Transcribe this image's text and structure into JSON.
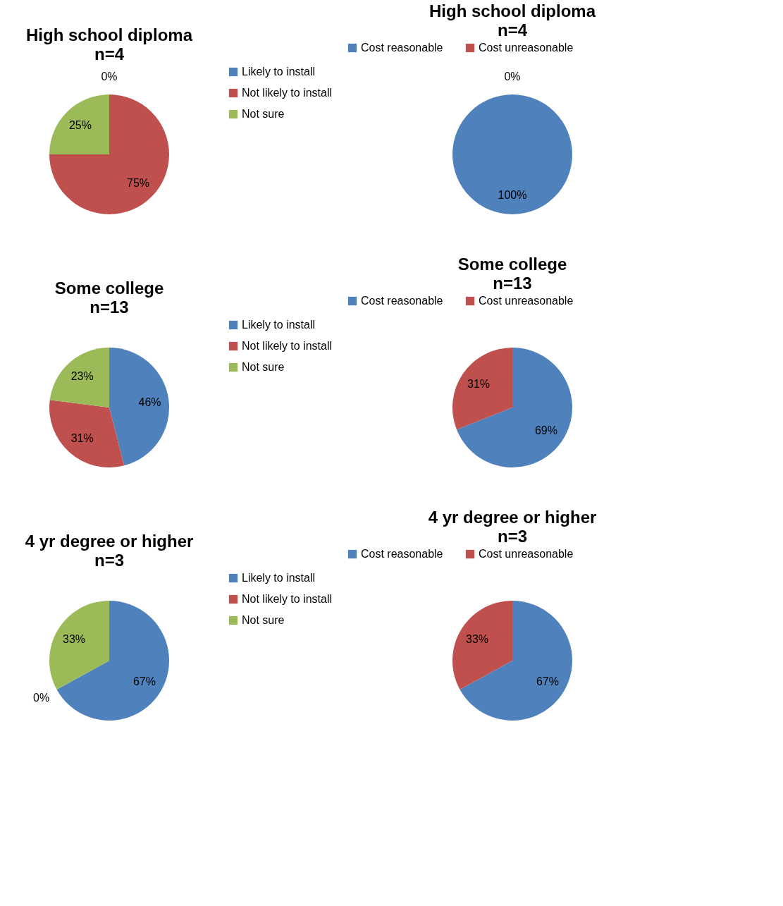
{
  "chart_data": [
    {
      "type": "pie",
      "title": "High school diploma",
      "subtitle": "n=4",
      "categories": [
        "Likely to install",
        "Not likely to install",
        "Not sure"
      ],
      "values": [
        0,
        75,
        25
      ],
      "colors": [
        "#4f81bd",
        "#c0504d",
        "#9bbb59"
      ],
      "value_labels": [
        "0%",
        "75%",
        "25%"
      ],
      "legend": "right"
    },
    {
      "type": "pie",
      "title": "High school diploma",
      "subtitle": "n=4",
      "categories": [
        "Cost reasonable",
        "Cost unreasonable"
      ],
      "values": [
        100,
        0
      ],
      "colors": [
        "#4f81bd",
        "#c0504d"
      ],
      "value_labels": [
        "100%",
        "0%"
      ],
      "legend": "top"
    },
    {
      "type": "pie",
      "title": "Some college",
      "subtitle": "n=13",
      "categories": [
        "Likely to install",
        "Not likely to install",
        "Not sure"
      ],
      "values": [
        46,
        31,
        23
      ],
      "colors": [
        "#4f81bd",
        "#c0504d",
        "#9bbb59"
      ],
      "value_labels": [
        "46%",
        "31%",
        "23%"
      ],
      "legend": "right"
    },
    {
      "type": "pie",
      "title": "Some college",
      "subtitle": "n=13",
      "categories": [
        "Cost reasonable",
        "Cost unreasonable"
      ],
      "values": [
        69,
        31
      ],
      "colors": [
        "#4f81bd",
        "#c0504d"
      ],
      "value_labels": [
        "69%",
        "31%"
      ],
      "legend": "top"
    },
    {
      "type": "pie",
      "title": "4 yr degree or higher",
      "subtitle": "n=3",
      "categories": [
        "Likely to install",
        "Not likely to install",
        "Not sure"
      ],
      "values": [
        67,
        0,
        33
      ],
      "colors": [
        "#4f81bd",
        "#c0504d",
        "#9bbb59"
      ],
      "value_labels": [
        "67%",
        "0%",
        "33%"
      ],
      "legend": "right"
    },
    {
      "type": "pie",
      "title": "4 yr degree or higher",
      "subtitle": "n=3",
      "categories": [
        "Cost reasonable",
        "Cost unreasonable"
      ],
      "values": [
        67,
        33
      ],
      "colors": [
        "#4f81bd",
        "#c0504d"
      ],
      "value_labels": [
        "67%",
        "33%"
      ],
      "legend": "top"
    }
  ]
}
